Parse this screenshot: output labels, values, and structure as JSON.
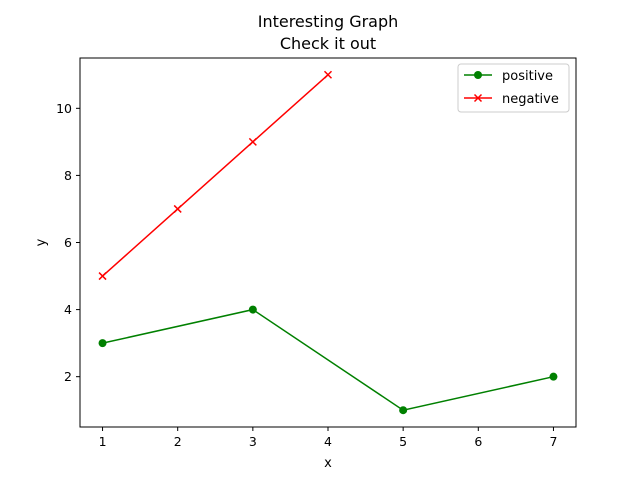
{
  "chart_data": {
    "type": "line",
    "title": "Interesting Graph",
    "subtitle": "Check it out",
    "xlabel": "x",
    "ylabel": "y",
    "xlim": [
      0.7,
      7.3
    ],
    "ylim": [
      0.5,
      11.5
    ],
    "xticks": [
      1,
      2,
      3,
      4,
      5,
      6,
      7
    ],
    "yticks": [
      2,
      4,
      6,
      8,
      10
    ],
    "grid": false,
    "legend_position": "upper-right",
    "series": [
      {
        "name": "positive",
        "color": "#008000",
        "marker": "circle",
        "x": [
          1,
          3,
          5,
          7
        ],
        "y": [
          3,
          4,
          1,
          2
        ]
      },
      {
        "name": "negative",
        "color": "#ff0000",
        "marker": "x",
        "x": [
          1,
          2,
          3,
          4
        ],
        "y": [
          5,
          7,
          9,
          11
        ]
      }
    ]
  }
}
